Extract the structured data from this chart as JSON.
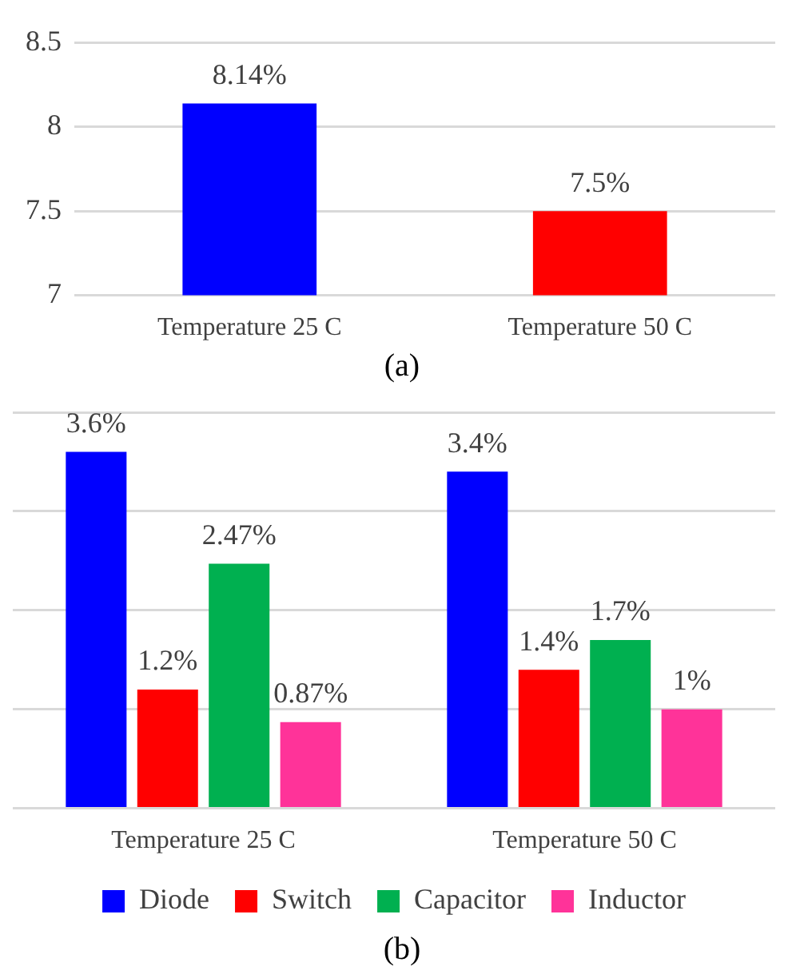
{
  "chart_data": [
    {
      "type": "bar",
      "categories": [
        "Temperature 25 C",
        "Temperature 50 C"
      ],
      "values": [
        8.14,
        7.5
      ],
      "colors": [
        "#0000ff",
        "#ff0000"
      ],
      "value_labels": [
        "8.14%",
        "7.5%"
      ],
      "ylim": [
        7,
        8.5
      ],
      "yticks": [
        7,
        7.5,
        8,
        8.5
      ],
      "grid": "y",
      "annotations": [
        "(a)"
      ]
    },
    {
      "type": "bar",
      "categories": [
        "Temperature 25 C",
        "Temperature 50 C"
      ],
      "series": [
        {
          "name": "Diode",
          "color": "#0000ff",
          "values": [
            3.6,
            3.4
          ],
          "value_labels": [
            "3.6%",
            "3.4%"
          ]
        },
        {
          "name": "Switch",
          "color": "#ff0000",
          "values": [
            1.2,
            1.4
          ],
          "value_labels": [
            "1.2%",
            "1.4%"
          ]
        },
        {
          "name": "Capacitor",
          "color": "#00b050",
          "values": [
            2.47,
            1.7
          ],
          "value_labels": [
            "2.47%",
            "1.7%"
          ]
        },
        {
          "name": "Inductor",
          "color": "#ff3399",
          "values": [
            0.87,
            1
          ],
          "value_labels": [
            "0.87%",
            "1%"
          ]
        }
      ],
      "ylim": [
        0,
        4
      ],
      "yticks": [
        {
          "value": 0,
          "label": null
        },
        {
          "value": 1,
          "label": null
        },
        {
          "value": 2,
          "label": null
        },
        {
          "value": 3,
          "label": null
        },
        {
          "value": 4,
          "label": null
        }
      ],
      "tick_labels": "x",
      "grid": "y",
      "legend": "bottom",
      "annotations": [
        "(b)"
      ]
    }
  ]
}
